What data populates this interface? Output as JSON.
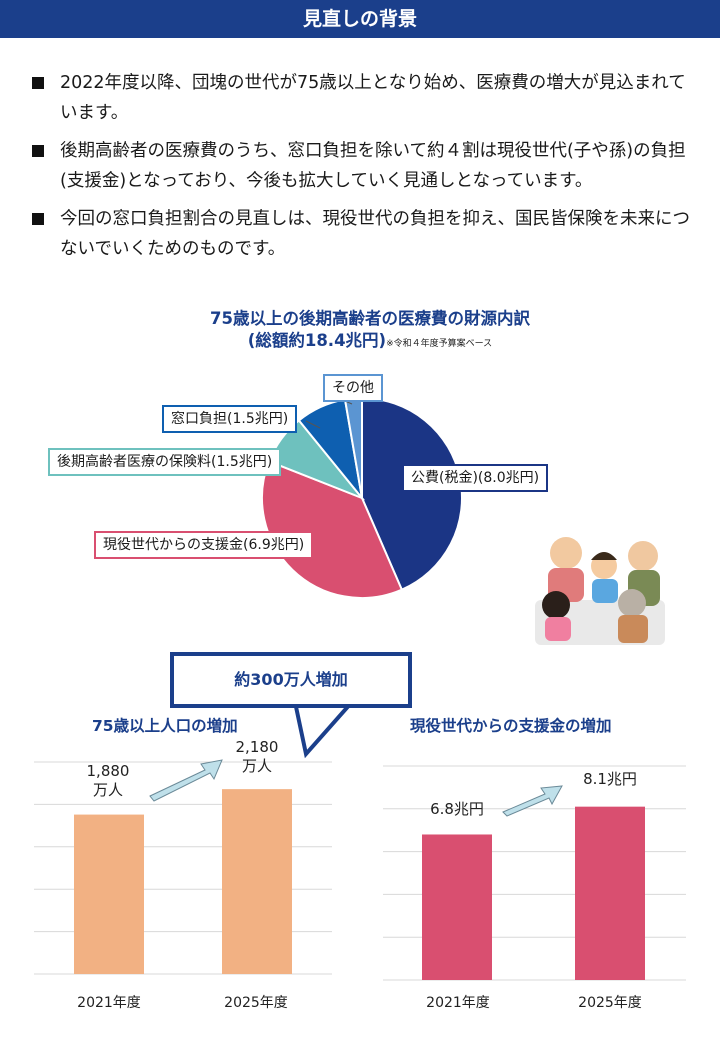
{
  "header": {
    "title": "見直しの背景"
  },
  "bullets": [
    "2022年度以降、団塊の世代が75歳以上となり始め、医療費の増大が見込まれています。",
    "後期高齢者の医療費のうち、窓口負担を除いて約４割は現役世代(子や孫)の負担(支援金)となっており、今後も拡大していく見通しとなっています。",
    "今回の窓口負担割合の見直しは、現役世代の負担を抑え、国民皆保険を未来につないでいくためのものです。"
  ],
  "pie": {
    "title_line1": "75歳以上の後期高齢者の医療費の財源内訳",
    "title_line2": "(総額約18.4兆円)",
    "title_note": "※令和４年度予算案ベース",
    "labels": {
      "public": "公費(税金)(8.0兆円)",
      "support": "現役世代からの支援金(6.9兆円)",
      "insurance": "後期高齢者医療の保険料(1.5兆円)",
      "window": "窓口負担(1.5兆円)",
      "other": "その他"
    }
  },
  "chart_data": [
    {
      "type": "pie",
      "title": "75歳以上の後期高齢者の医療費の財源内訳",
      "subtitle": "(総額約18.4兆円)",
      "slices": [
        {
          "label": "公費(税金)",
          "value": 8.0,
          "color": "#1b3585"
        },
        {
          "label": "現役世代からの支援金",
          "value": 6.9,
          "color": "#d94f70"
        },
        {
          "label": "後期高齢者医療の保険料",
          "value": 1.5,
          "color": "#6ec1be"
        },
        {
          "label": "窓口負担",
          "value": 1.5,
          "color": "#0e5fb0"
        },
        {
          "label": "その他",
          "value": 0.5,
          "color": "#5b95d2"
        }
      ]
    },
    {
      "type": "bar",
      "title": "75歳以上人口の増加",
      "categories": [
        "2021年度",
        "2025年度"
      ],
      "values": [
        1880,
        2180
      ],
      "ylim": [
        0,
        2500
      ],
      "color": "#f2b183"
    },
    {
      "type": "bar",
      "title": "現役世代からの支援金の増加",
      "categories": [
        "2021年度",
        "2025年度"
      ],
      "values": [
        6.8,
        8.1
      ],
      "ylim": [
        0,
        10
      ],
      "color": "#d94f70"
    }
  ],
  "left_chart": {
    "title": "75歳以上人口の増加",
    "callout": "約300万人増加",
    "labels": [
      [
        "1,880",
        "万人"
      ],
      [
        "2,180",
        "万人"
      ]
    ],
    "xlabels": [
      "2021年度",
      "2025年度"
    ]
  },
  "right_chart": {
    "title": "現役世代からの支援金の増加",
    "labels": [
      "6.8兆円",
      "8.1兆円"
    ],
    "xlabels": [
      "2021年度",
      "2025年度"
    ]
  }
}
